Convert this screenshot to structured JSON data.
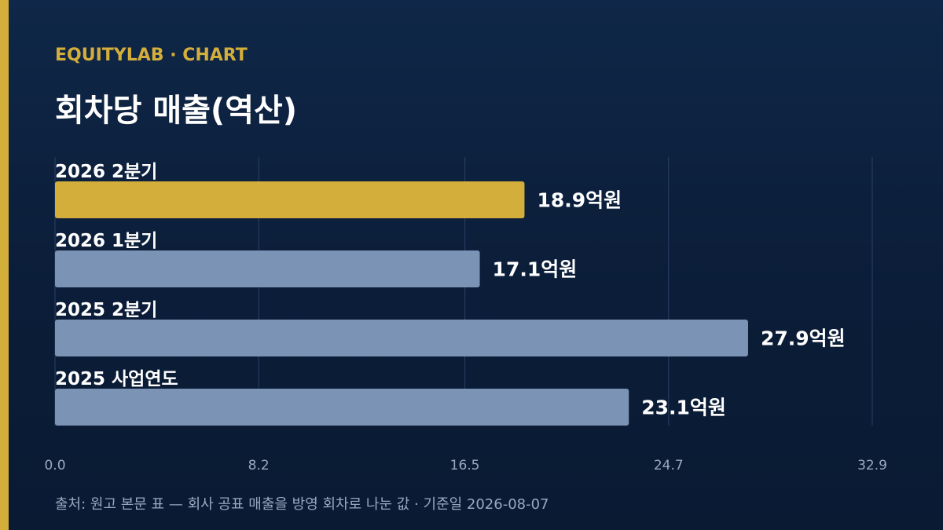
{
  "header": {
    "brand": "EQUITYLAB · CHART",
    "title": "회차당 매출(역산)"
  },
  "footer": {
    "source": "출처: 원고 본문 표 — 회사 공표 매출을 방영 회차로 나눈 값 · 기준일 2026-08-07"
  },
  "colors": {
    "background": "#0d2240",
    "accent": "#d4ae3a",
    "bar_default": "#7b93b5",
    "bar_highlight": "#d4ae3a",
    "text": "#ffffff",
    "muted": "#9aa8bf",
    "grid": "#2a4163"
  },
  "chart_data": {
    "type": "bar",
    "orientation": "horizontal",
    "categories": [
      "2026 2분기",
      "2026 1분기",
      "2025 2분기",
      "2025 사업연도"
    ],
    "values": [
      18.9,
      17.1,
      27.9,
      23.1
    ],
    "value_labels": [
      "18.9억원",
      "17.1억원",
      "27.9억원",
      "23.1억원"
    ],
    "highlight_index": 0,
    "xlim": [
      0,
      32.9
    ],
    "xticks": [
      "0.0",
      "8.2",
      "16.5",
      "24.7",
      "32.9"
    ],
    "grid": true,
    "title": "회차당 매출(역산)"
  }
}
